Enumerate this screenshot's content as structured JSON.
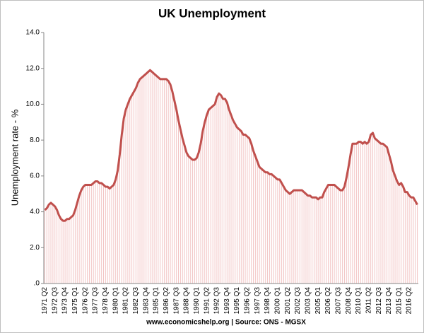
{
  "chart_data": {
    "type": "line",
    "title": "UK Unemployment",
    "y_label": "Unemployment rate - %",
    "source": "www.economicshelp.org | Source: ONS - MGSX",
    "color": "#c0504d",
    "drop_color": "#f2c4c4",
    "grid": false,
    "ylim": [
      0,
      14
    ],
    "yticks": [
      {
        "value": 0,
        "label": ".0"
      },
      {
        "value": 2,
        "label": "2.0"
      },
      {
        "value": 4,
        "label": "4.0"
      },
      {
        "value": 6,
        "label": "6.0"
      },
      {
        "value": 8,
        "label": "8.0"
      },
      {
        "value": 10,
        "label": "10.0"
      },
      {
        "value": 12,
        "label": "12.0"
      },
      {
        "value": 14,
        "label": "14.0"
      }
    ],
    "categories": [
      "1971 Q2",
      null,
      null,
      null,
      null,
      "1972 Q3",
      null,
      null,
      null,
      null,
      "1973 Q4",
      null,
      null,
      null,
      null,
      "1975 Q1",
      null,
      null,
      null,
      null,
      "1976 Q2",
      null,
      null,
      null,
      null,
      "1977 Q3",
      null,
      null,
      null,
      null,
      "1978 Q4",
      null,
      null,
      null,
      null,
      "1980 Q1",
      null,
      null,
      null,
      null,
      "1981 Q2",
      null,
      null,
      null,
      null,
      "1982 Q3",
      null,
      null,
      null,
      null,
      "1983 Q4",
      null,
      null,
      null,
      null,
      "1985 Q1",
      null,
      null,
      null,
      null,
      "1986 Q2",
      null,
      null,
      null,
      null,
      "1987 Q3",
      null,
      null,
      null,
      null,
      "1988 Q4",
      null,
      null,
      null,
      null,
      "1990 Q1",
      null,
      null,
      null,
      null,
      "1991 Q2",
      null,
      null,
      null,
      null,
      "1992 Q3",
      null,
      null,
      null,
      null,
      "1993 Q4",
      null,
      null,
      null,
      null,
      "1995 Q1",
      null,
      null,
      null,
      null,
      "1996 Q2",
      null,
      null,
      null,
      null,
      "1997 Q3",
      null,
      null,
      null,
      null,
      "1998 Q4",
      null,
      null,
      null,
      null,
      "2000 Q1",
      null,
      null,
      null,
      null,
      "2001 Q2",
      null,
      null,
      null,
      null,
      "2002 Q3",
      null,
      null,
      null,
      null,
      "2003 Q4",
      null,
      null,
      null,
      null,
      "2005 Q1",
      null,
      null,
      null,
      null,
      "2006 Q2",
      null,
      null,
      null,
      null,
      "2007 Q3",
      null,
      null,
      null,
      null,
      "2008 Q4",
      null,
      null,
      null,
      null,
      "2010 Q1",
      null,
      null,
      null,
      null,
      "2011 Q2",
      null,
      null,
      null,
      null,
      "2012 Q3",
      null,
      null,
      null,
      null,
      "2013 Q4",
      null,
      null,
      null,
      null,
      "2015 Q1",
      null,
      null,
      null,
      null,
      "2016 Q2",
      null,
      null,
      null,
      null
    ],
    "values": [
      4.1,
      4.2,
      4.4,
      4.5,
      4.4,
      4.3,
      4.1,
      3.8,
      3.6,
      3.5,
      3.5,
      3.6,
      3.6,
      3.7,
      3.8,
      4.1,
      4.5,
      4.9,
      5.2,
      5.4,
      5.5,
      5.5,
      5.5,
      5.5,
      5.6,
      5.7,
      5.7,
      5.6,
      5.6,
      5.5,
      5.4,
      5.4,
      5.3,
      5.4,
      5.5,
      5.8,
      6.3,
      7.2,
      8.3,
      9.2,
      9.7,
      10.0,
      10.3,
      10.5,
      10.7,
      10.9,
      11.2,
      11.4,
      11.5,
      11.6,
      11.7,
      11.8,
      11.9,
      11.8,
      11.7,
      11.6,
      11.5,
      11.4,
      11.4,
      11.4,
      11.4,
      11.3,
      11.1,
      10.7,
      10.2,
      9.7,
      9.1,
      8.6,
      8.1,
      7.7,
      7.3,
      7.1,
      7.0,
      6.9,
      6.9,
      7.0,
      7.3,
      7.8,
      8.5,
      9.0,
      9.4,
      9.7,
      9.8,
      9.9,
      10.0,
      10.4,
      10.6,
      10.5,
      10.3,
      10.3,
      10.1,
      9.7,
      9.4,
      9.1,
      8.9,
      8.7,
      8.6,
      8.5,
      8.3,
      8.3,
      8.2,
      8.1,
      7.8,
      7.4,
      7.1,
      6.8,
      6.5,
      6.4,
      6.3,
      6.2,
      6.2,
      6.1,
      6.1,
      6.0,
      5.9,
      5.8,
      5.8,
      5.6,
      5.4,
      5.2,
      5.1,
      5.0,
      5.1,
      5.2,
      5.2,
      5.2,
      5.2,
      5.2,
      5.1,
      5.0,
      4.9,
      4.9,
      4.8,
      4.8,
      4.8,
      4.7,
      4.8,
      4.8,
      5.1,
      5.3,
      5.5,
      5.5,
      5.5,
      5.5,
      5.4,
      5.3,
      5.2,
      5.2,
      5.4,
      5.9,
      6.5,
      7.2,
      7.8,
      7.8,
      7.8,
      7.9,
      7.9,
      7.8,
      7.9,
      7.8,
      7.9,
      8.3,
      8.4,
      8.1,
      8.0,
      7.9,
      7.8,
      7.8,
      7.7,
      7.6,
      7.2,
      6.8,
      6.3,
      6.0,
      5.7,
      5.5,
      5.6,
      5.4,
      5.1,
      5.1,
      4.9,
      4.8,
      4.8,
      4.6,
      4.4
    ]
  }
}
